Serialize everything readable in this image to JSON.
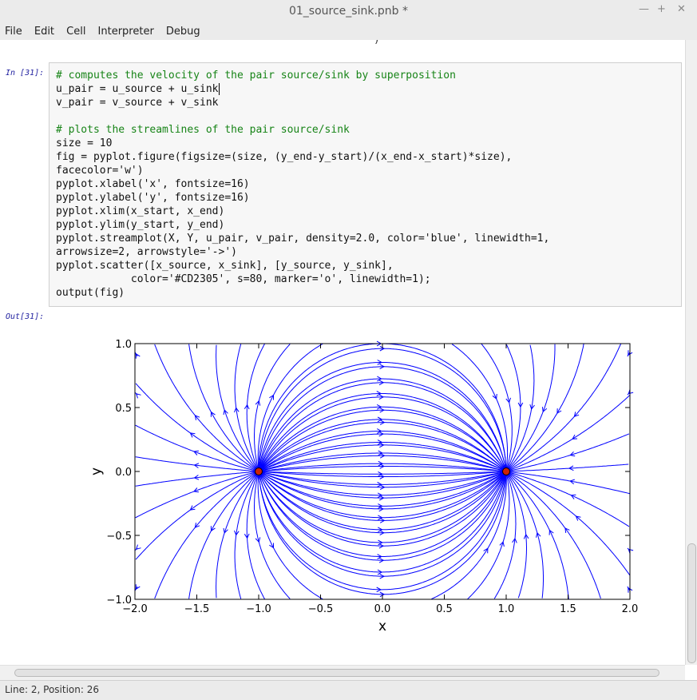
{
  "window": {
    "title": "01_source_sink.pnb *"
  },
  "menu": [
    "File",
    "Edit",
    "Cell",
    "Interpreter",
    "Debug"
  ],
  "cell_in": {
    "prompt": "In [31]:",
    "code_lines": [
      "# computes the velocity of the pair source/sink by superposition",
      "u_pair = u_source + u_sink",
      "v_pair = v_source + v_sink",
      "",
      "# plots the streamlines of the pair source/sink",
      "size = 10",
      "fig = pyplot.figure(figsize=(size, (y_end-y_start)/(x_end-x_start)*size),",
      "facecolor='w')",
      "pyplot.xlabel('x', fontsize=16)",
      "pyplot.ylabel('y', fontsize=16)",
      "pyplot.xlim(x_start, x_end)",
      "pyplot.ylim(y_start, y_end)",
      "pyplot.streamplot(X, Y, u_pair, v_pair, density=2.0, color='blue', linewidth=1,",
      "arrowsize=2, arrowstyle='->')",
      "pyplot.scatter([x_source, x_sink], [y_source, y_sink],",
      "            color='#CD2305', s=80, marker='o', linewidth=1);",
      "output(fig)"
    ]
  },
  "cell_out": {
    "prompt": "Out[31]:"
  },
  "chart_data": {
    "type": "streamplot",
    "title": "",
    "xlabel": "x",
    "ylabel": "y",
    "xlim": [
      -2.0,
      2.0
    ],
    "ylim": [
      -1.0,
      1.0
    ],
    "x_ticks": [
      "−2.0",
      "−1.5",
      "−1.0",
      "−0.5",
      "0.0",
      "0.5",
      "1.0",
      "1.5",
      "2.0"
    ],
    "y_ticks": [
      "1.0",
      "0.5",
      "0.0",
      "−0.5",
      "−1.0"
    ],
    "stream_color": "#0000ff",
    "points": [
      {
        "name": "source",
        "x": -1.0,
        "y": 0.0,
        "color": "#CD2305"
      },
      {
        "name": "sink",
        "x": 1.0,
        "y": 0.0,
        "color": "#CD2305"
      }
    ]
  },
  "status": {
    "text": "Line: 2, Position: 26"
  }
}
